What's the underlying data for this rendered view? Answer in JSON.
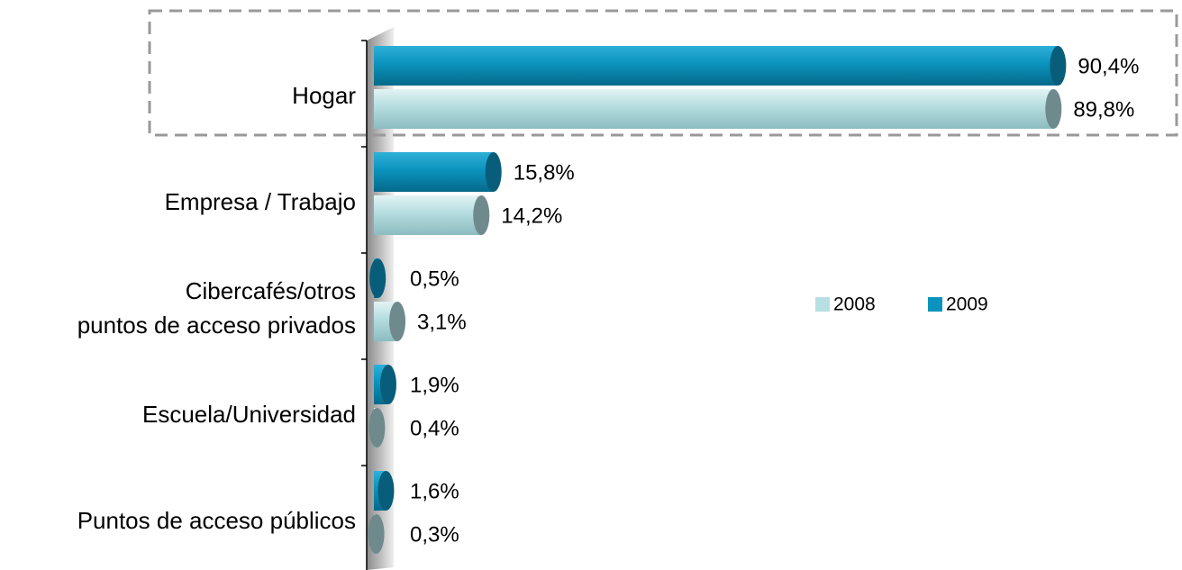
{
  "chart_data": {
    "type": "bar",
    "orientation": "horizontal",
    "categories": [
      "Hogar",
      "Empresa / Trabajo",
      "Cibercafés/otros\npuntos de acceso privados",
      "Escuela/Universidad",
      "Puntos de acceso públicos"
    ],
    "series": [
      {
        "name": "2008",
        "color": "#b8dfe2",
        "values": [
          89.8,
          14.2,
          3.1,
          0.4,
          0.3
        ],
        "value_labels": [
          "89,8%",
          "14,2%",
          "3,1%",
          "0,4%",
          "0,3%"
        ]
      },
      {
        "name": "2009",
        "color": "#0b93bd",
        "values": [
          90.4,
          15.8,
          0.5,
          1.9,
          1.6
        ],
        "value_labels": [
          "90,4%",
          "15,8%",
          "0,5%",
          "1,9%",
          "1,6%"
        ]
      }
    ],
    "legend": "right"
  }
}
